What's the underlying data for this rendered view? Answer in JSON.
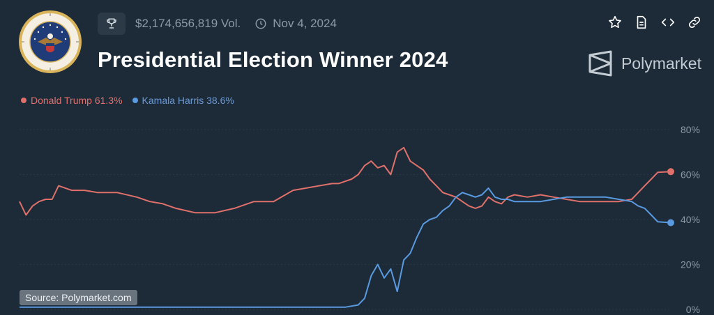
{
  "header": {
    "volume": "$2,174,656,819 Vol.",
    "date": "Nov 4, 2024",
    "title": "Presidential Election Winner 2024",
    "icons": [
      "trophy-icon",
      "clock-icon",
      "star-icon",
      "document-icon",
      "code-icon",
      "link-icon"
    ]
  },
  "brand": {
    "name": "Polymarket",
    "icon": "polymarket-logo-icon"
  },
  "seal": {
    "alt": "SEAL OF THE PRESIDENT OF THE UNITED STATES"
  },
  "legend": {
    "trump": "Donald Trump 61.3%",
    "harris": "Kamala Harris 38.6%"
  },
  "source": "Source: Polymarket.com",
  "colors": {
    "background": "#1d2b39",
    "trump": "#e0706a",
    "harris": "#5a9ae0",
    "text_muted": "#8c99a6"
  },
  "chart_data": {
    "type": "line",
    "title": "Presidential Election Winner 2024",
    "xlabel": "",
    "ylabel": "",
    "ylim": [
      0,
      80
    ],
    "yticks": [
      "80%",
      "60%",
      "40%",
      "20%",
      "0%"
    ],
    "ytick_values": [
      80,
      60,
      40,
      20,
      0
    ],
    "grid": true,
    "legend_position": "top-left",
    "series": [
      {
        "name": "Donald Trump",
        "color": "#e0706a",
        "end_value": 61.3,
        "x": [
          0,
          1,
          2,
          3,
          4,
          5,
          6,
          8,
          10,
          12,
          15,
          18,
          20,
          22,
          24,
          27,
          30,
          33,
          36,
          39,
          42,
          44,
          46,
          48,
          49,
          50,
          51,
          52,
          53,
          54,
          55,
          56,
          57,
          58,
          59,
          60,
          61,
          62,
          63,
          64,
          65,
          66,
          67,
          68,
          69,
          70,
          71,
          72,
          73,
          74,
          75,
          76,
          78,
          80,
          82,
          84,
          86,
          88,
          90,
          92,
          94,
          95,
          96,
          97,
          98,
          100
        ],
        "values": [
          48,
          42,
          46,
          48,
          49,
          49,
          55,
          53,
          53,
          52,
          52,
          50,
          48,
          47,
          45,
          43,
          43,
          45,
          48,
          48,
          53,
          54,
          55,
          56,
          56,
          57,
          58,
          60,
          64,
          66,
          63,
          64,
          60,
          70,
          72,
          66,
          64,
          62,
          58,
          55,
          52,
          51,
          50,
          48,
          46,
          45,
          46,
          50,
          48,
          47,
          50,
          51,
          50,
          51,
          50,
          49,
          48,
          48,
          48,
          48,
          49,
          52,
          55,
          58,
          61,
          61.3
        ]
      },
      {
        "name": "Kamala Harris",
        "color": "#5a9ae0",
        "end_value": 38.6,
        "x": [
          0,
          5,
          10,
          15,
          20,
          25,
          30,
          35,
          40,
          45,
          50,
          52,
          53,
          54,
          55,
          56,
          57,
          58,
          59,
          60,
          61,
          62,
          63,
          64,
          65,
          66,
          67,
          68,
          69,
          70,
          71,
          72,
          73,
          74,
          75,
          76,
          78,
          80,
          82,
          84,
          86,
          88,
          90,
          92,
          94,
          95,
          96,
          97,
          98,
          100
        ],
        "values": [
          1,
          1,
          1,
          1,
          1,
          1,
          1,
          1,
          1,
          1,
          1,
          2,
          5,
          15,
          20,
          14,
          18,
          8,
          22,
          25,
          32,
          38,
          40,
          41,
          44,
          46,
          50,
          52,
          51,
          50,
          51,
          54,
          50,
          49,
          49,
          48,
          48,
          48,
          49,
          50,
          50,
          50,
          50,
          49,
          48,
          46,
          45,
          42,
          39,
          38.6
        ]
      }
    ]
  }
}
